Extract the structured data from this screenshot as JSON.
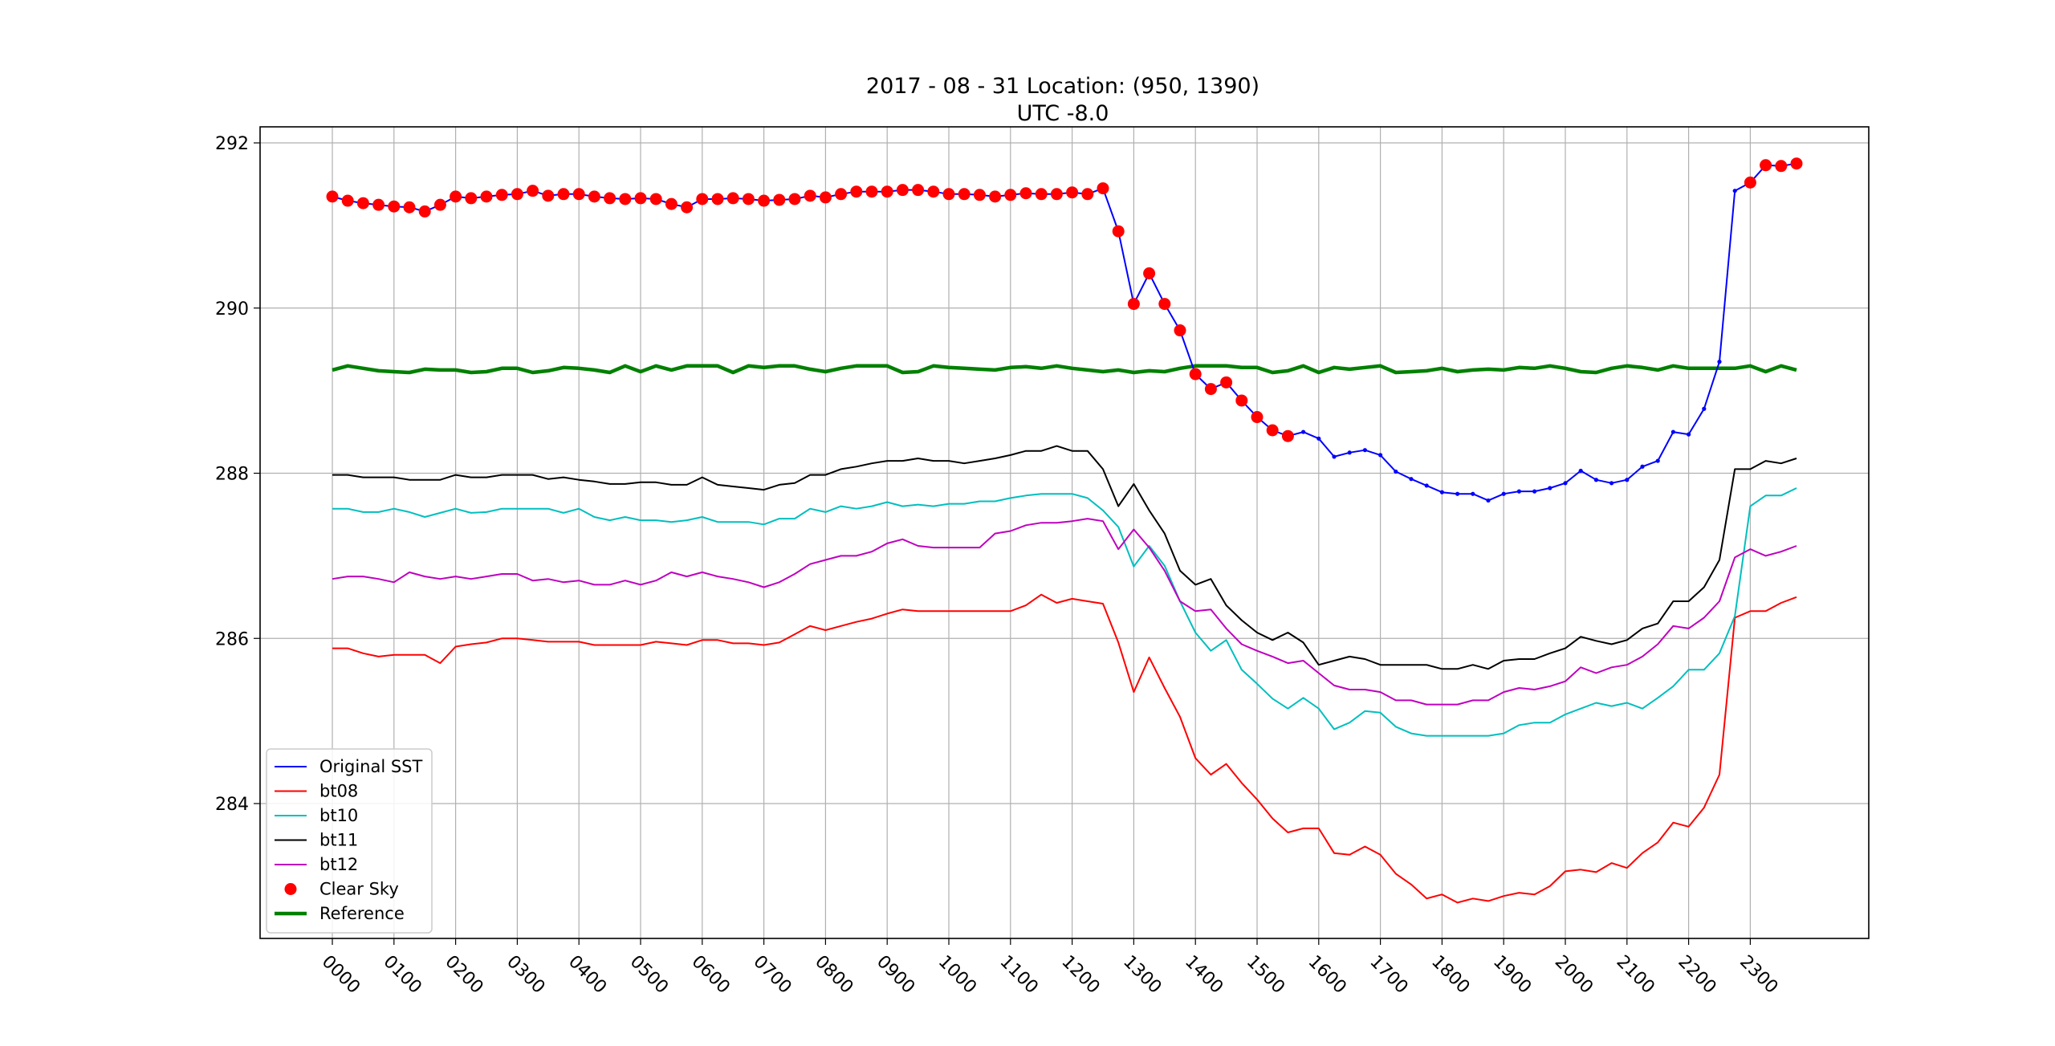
{
  "chart_data": {
    "type": "line",
    "title": "2017 - 08 - 31   Location: (950, 1390)",
    "subtitle": "UTC -8.0",
    "xlabel": "",
    "ylabel": "",
    "x_tick_labels": [
      "0000",
      "0100",
      "0200",
      "0300",
      "0400",
      "0500",
      "0600",
      "0700",
      "0800",
      "0900",
      "1000",
      "1100",
      "1200",
      "1300",
      "1400",
      "1500",
      "1600",
      "1700",
      "1800",
      "1900",
      "2000",
      "2100",
      "2200",
      "2300"
    ],
    "y_ticks": [
      284,
      286,
      288,
      290,
      292
    ],
    "ylim": [
      282.0,
      292.2
    ],
    "grid": true,
    "legend_position": "lower-left",
    "legend": [
      "Original SST",
      "bt08",
      "bt10",
      "bt11",
      "bt12",
      "Clear Sky",
      "Reference"
    ],
    "series": [
      {
        "name": "Original SST",
        "color": "#0000ff",
        "values": [
          291.35,
          291.3,
          291.27,
          291.25,
          291.23,
          291.22,
          291.17,
          291.25,
          291.35,
          291.33,
          291.35,
          291.37,
          291.38,
          291.42,
          291.36,
          291.38,
          291.38,
          291.35,
          291.33,
          291.32,
          291.33,
          291.32,
          291.26,
          291.22,
          291.32,
          291.32,
          291.33,
          291.32,
          291.3,
          291.31,
          291.32,
          291.36,
          291.34,
          291.38,
          291.41,
          291.41,
          291.41,
          291.43,
          291.43,
          291.41,
          291.38,
          291.38,
          291.37,
          291.35,
          291.37,
          291.39,
          291.38,
          291.38,
          291.4,
          291.38,
          291.45,
          290.93,
          290.05,
          290.42,
          290.05,
          289.73,
          289.2,
          289.02,
          289.1,
          288.88,
          288.68,
          288.52,
          288.45,
          288.5,
          288.42,
          288.2,
          288.25,
          288.28,
          288.22,
          288.02,
          287.93,
          287.85,
          287.77,
          287.75,
          287.75,
          287.67,
          287.75,
          287.78,
          287.78,
          287.82,
          287.88,
          288.03,
          287.92,
          287.88,
          287.92,
          288.08,
          288.15,
          288.5,
          288.47,
          288.78,
          289.35,
          291.42,
          291.52,
          291.73,
          291.72,
          291.75
        ]
      },
      {
        "name": "bt08",
        "color": "#ff0000",
        "values": [
          285.88,
          285.88,
          285.82,
          285.78,
          285.8,
          285.8,
          285.8,
          285.7,
          285.9,
          285.93,
          285.95,
          286.0,
          286.0,
          285.98,
          285.96,
          285.96,
          285.96,
          285.92,
          285.92,
          285.92,
          285.92,
          285.96,
          285.94,
          285.92,
          285.98,
          285.98,
          285.94,
          285.94,
          285.92,
          285.95,
          286.05,
          286.15,
          286.1,
          286.15,
          286.2,
          286.24,
          286.3,
          286.35,
          286.33,
          286.33,
          286.33,
          286.33,
          286.33,
          286.33,
          286.33,
          286.4,
          286.53,
          286.43,
          286.48,
          286.45,
          286.42,
          285.95,
          285.35,
          285.77,
          285.4,
          285.05,
          284.55,
          284.35,
          284.48,
          284.25,
          284.05,
          283.82,
          283.65,
          283.7,
          283.7,
          283.4,
          283.38,
          283.48,
          283.38,
          283.15,
          283.02,
          282.85,
          282.9,
          282.8,
          282.85,
          282.82,
          282.88,
          282.92,
          282.9,
          283.0,
          283.18,
          283.2,
          283.17,
          283.28,
          283.22,
          283.4,
          283.53,
          283.77,
          283.72,
          283.95,
          284.35,
          286.25,
          286.33,
          286.33,
          286.43,
          286.5
        ]
      },
      {
        "name": "bt10",
        "color": "#00bfbf",
        "values": [
          287.57,
          287.57,
          287.53,
          287.53,
          287.57,
          287.53,
          287.47,
          287.52,
          287.57,
          287.52,
          287.53,
          287.57,
          287.57,
          287.57,
          287.57,
          287.52,
          287.57,
          287.47,
          287.43,
          287.47,
          287.43,
          287.43,
          287.41,
          287.43,
          287.47,
          287.41,
          287.41,
          287.41,
          287.38,
          287.45,
          287.45,
          287.57,
          287.53,
          287.6,
          287.57,
          287.6,
          287.65,
          287.6,
          287.62,
          287.6,
          287.63,
          287.63,
          287.66,
          287.66,
          287.7,
          287.73,
          287.75,
          287.75,
          287.75,
          287.7,
          287.55,
          287.35,
          286.87,
          287.12,
          286.88,
          286.45,
          286.07,
          285.85,
          285.98,
          285.62,
          285.45,
          285.27,
          285.15,
          285.28,
          285.15,
          284.9,
          284.98,
          285.12,
          285.1,
          284.93,
          284.85,
          284.82,
          284.82,
          284.82,
          284.82,
          284.82,
          284.85,
          284.95,
          284.98,
          284.98,
          285.08,
          285.15,
          285.22,
          285.18,
          285.22,
          285.15,
          285.28,
          285.42,
          285.62,
          285.62,
          285.82,
          286.27,
          287.6,
          287.73,
          287.73,
          287.82
        ]
      },
      {
        "name": "bt11",
        "color": "#000000",
        "values": [
          287.98,
          287.98,
          287.95,
          287.95,
          287.95,
          287.92,
          287.92,
          287.92,
          287.98,
          287.95,
          287.95,
          287.98,
          287.98,
          287.98,
          287.93,
          287.95,
          287.92,
          287.9,
          287.87,
          287.87,
          287.89,
          287.89,
          287.86,
          287.86,
          287.95,
          287.86,
          287.84,
          287.82,
          287.8,
          287.86,
          287.88,
          287.98,
          287.98,
          288.05,
          288.08,
          288.12,
          288.15,
          288.15,
          288.18,
          288.15,
          288.15,
          288.12,
          288.15,
          288.18,
          288.22,
          288.27,
          288.27,
          288.33,
          288.27,
          288.27,
          288.05,
          287.6,
          287.87,
          287.55,
          287.27,
          286.82,
          286.65,
          286.72,
          286.4,
          286.22,
          286.07,
          285.98,
          286.07,
          285.95,
          285.68,
          285.73,
          285.78,
          285.75,
          285.68,
          285.68,
          285.68,
          285.68,
          285.63,
          285.63,
          285.68,
          285.63,
          285.73,
          285.75,
          285.75,
          285.82,
          285.88,
          286.02,
          285.97,
          285.93,
          285.98,
          286.12,
          286.18,
          286.45,
          286.45,
          286.62,
          286.95,
          288.05,
          288.05,
          288.15,
          288.12,
          288.18
        ]
      },
      {
        "name": "bt12",
        "color": "#bf00bf",
        "values": [
          286.72,
          286.75,
          286.75,
          286.72,
          286.68,
          286.8,
          286.75,
          286.72,
          286.75,
          286.72,
          286.75,
          286.78,
          286.78,
          286.7,
          286.72,
          286.68,
          286.7,
          286.65,
          286.65,
          286.7,
          286.65,
          286.7,
          286.8,
          286.75,
          286.8,
          286.75,
          286.72,
          286.68,
          286.62,
          286.68,
          286.78,
          286.9,
          286.95,
          287.0,
          287.0,
          287.05,
          287.15,
          287.2,
          287.12,
          287.1,
          287.1,
          287.1,
          287.1,
          287.27,
          287.3,
          287.37,
          287.4,
          287.4,
          287.42,
          287.45,
          287.42,
          287.08,
          287.32,
          287.1,
          286.82,
          286.45,
          286.33,
          286.35,
          286.12,
          285.93,
          285.85,
          285.78,
          285.7,
          285.73,
          285.58,
          285.43,
          285.38,
          285.38,
          285.35,
          285.25,
          285.25,
          285.2,
          285.2,
          285.2,
          285.25,
          285.25,
          285.35,
          285.4,
          285.38,
          285.42,
          285.48,
          285.65,
          285.58,
          285.65,
          285.68,
          285.78,
          285.93,
          286.15,
          286.12,
          286.25,
          286.45,
          286.98,
          287.08,
          287.0,
          287.05,
          287.12
        ]
      },
      {
        "name": "Clear Sky",
        "color": "#ff0000",
        "marker": "circle",
        "points": [
          [
            0,
            291.35
          ],
          [
            1,
            291.3
          ],
          [
            2,
            291.27
          ],
          [
            3,
            291.25
          ],
          [
            4,
            291.23
          ],
          [
            5,
            291.22
          ],
          [
            6,
            291.17
          ],
          [
            7,
            291.25
          ],
          [
            8,
            291.35
          ],
          [
            9,
            291.33
          ],
          [
            10,
            291.35
          ],
          [
            11,
            291.37
          ],
          [
            12,
            291.38
          ],
          [
            13,
            291.42
          ],
          [
            14,
            291.36
          ],
          [
            15,
            291.38
          ],
          [
            16,
            291.38
          ],
          [
            17,
            291.35
          ],
          [
            18,
            291.33
          ],
          [
            19,
            291.32
          ],
          [
            20,
            291.33
          ],
          [
            21,
            291.32
          ],
          [
            22,
            291.26
          ],
          [
            23,
            291.22
          ],
          [
            24,
            291.32
          ],
          [
            25,
            291.32
          ],
          [
            26,
            291.33
          ],
          [
            27,
            291.32
          ],
          [
            28,
            291.3
          ],
          [
            29,
            291.31
          ],
          [
            30,
            291.32
          ],
          [
            31,
            291.36
          ],
          [
            32,
            291.34
          ],
          [
            33,
            291.38
          ],
          [
            34,
            291.41
          ],
          [
            35,
            291.41
          ],
          [
            36,
            291.41
          ],
          [
            37,
            291.43
          ],
          [
            38,
            291.43
          ],
          [
            39,
            291.41
          ],
          [
            40,
            291.38
          ],
          [
            41,
            291.38
          ],
          [
            42,
            291.37
          ],
          [
            43,
            291.35
          ],
          [
            44,
            291.37
          ],
          [
            45,
            291.39
          ],
          [
            46,
            291.38
          ],
          [
            47,
            291.38
          ],
          [
            48,
            291.4
          ],
          [
            49,
            291.38
          ],
          [
            50,
            291.45
          ],
          [
            51,
            290.93
          ],
          [
            52,
            290.05
          ],
          [
            53,
            290.42
          ],
          [
            54,
            290.05
          ],
          [
            55,
            289.73
          ],
          [
            56,
            289.2
          ],
          [
            57,
            289.02
          ],
          [
            58,
            289.1
          ],
          [
            59,
            288.88
          ],
          [
            60,
            288.68
          ],
          [
            61,
            288.52
          ],
          [
            62,
            288.45
          ],
          [
            92,
            291.52
          ],
          [
            93,
            291.73
          ],
          [
            94,
            291.72
          ],
          [
            95,
            291.75
          ]
        ]
      },
      {
        "name": "Reference",
        "color": "#008000",
        "values": [
          289.25,
          289.3,
          289.27,
          289.24,
          289.23,
          289.22,
          289.26,
          289.25,
          289.25,
          289.22,
          289.23,
          289.27,
          289.27,
          289.22,
          289.24,
          289.28,
          289.27,
          289.25,
          289.22,
          289.3,
          289.23,
          289.3,
          289.25,
          289.3,
          289.3,
          289.3,
          289.22,
          289.3,
          289.28,
          289.3,
          289.3,
          289.26,
          289.23,
          289.27,
          289.3,
          289.3,
          289.3,
          289.22,
          289.23,
          289.3,
          289.28,
          289.27,
          289.26,
          289.25,
          289.28,
          289.29,
          289.27,
          289.3,
          289.27,
          289.25,
          289.23,
          289.25,
          289.22,
          289.24,
          289.23,
          289.27,
          289.3,
          289.3,
          289.3,
          289.28,
          289.28,
          289.22,
          289.24,
          289.3,
          289.22,
          289.28,
          289.26,
          289.28,
          289.3,
          289.22,
          289.23,
          289.24,
          289.27,
          289.23,
          289.25,
          289.26,
          289.25,
          289.28,
          289.27,
          289.3,
          289.27,
          289.23,
          289.22,
          289.27,
          289.3,
          289.28,
          289.25,
          289.3,
          289.27,
          289.27,
          289.27,
          289.27,
          289.3,
          289.23,
          289.3,
          289.25
        ]
      }
    ]
  }
}
